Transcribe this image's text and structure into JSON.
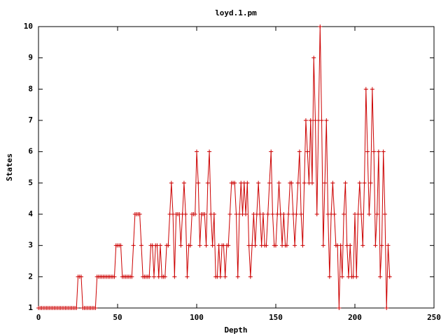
{
  "chart_data": {
    "type": "linespoints",
    "title": "loyd.1.pm",
    "x_label": "Depth",
    "y_label": "States",
    "color": "#cc0000",
    "values": [
      1,
      1,
      1,
      1,
      1,
      1,
      1,
      1,
      1,
      1,
      1,
      1,
      1,
      1,
      1,
      1,
      1,
      1,
      1,
      1,
      1,
      1,
      1,
      1,
      1,
      2,
      2,
      2,
      1,
      1,
      1,
      1,
      1,
      1,
      1,
      1,
      1,
      2,
      2,
      2,
      2,
      2,
      2,
      2,
      2,
      2,
      2,
      2,
      2,
      3,
      3,
      3,
      3,
      2,
      2,
      2,
      2,
      2,
      2,
      2,
      3,
      4,
      4,
      4,
      4,
      3,
      2,
      2,
      2,
      2,
      2,
      3,
      3,
      2,
      3,
      3,
      2,
      3,
      2,
      2,
      2,
      3,
      3,
      4,
      5,
      4,
      2,
      4,
      4,
      4,
      3,
      4,
      5,
      4,
      2,
      3,
      3,
      4,
      4,
      4,
      6,
      5,
      3,
      4,
      4,
      4,
      3,
      5,
      6,
      4,
      3,
      4,
      2,
      2,
      3,
      2,
      3,
      3,
      2,
      3,
      3,
      4,
      5,
      5,
      5,
      4,
      2,
      4,
      5,
      4,
      5,
      4,
      5,
      3,
      2,
      3,
      4,
      3,
      4,
      5,
      4,
      3,
      4,
      3,
      3,
      4,
      5,
      6,
      4,
      3,
      3,
      4,
      5,
      4,
      3,
      4,
      3,
      3,
      4,
      5,
      5,
      4,
      3,
      4,
      5,
      6,
      4,
      3,
      5,
      7,
      6,
      5,
      7,
      5,
      9,
      7,
      4,
      7,
      10,
      7,
      3,
      5,
      7,
      4,
      2,
      4,
      5,
      4,
      3,
      3,
      1,
      3,
      2,
      4,
      5,
      3,
      2,
      3,
      2,
      2,
      4,
      2,
      4,
      5,
      4,
      3,
      5,
      8,
      6,
      4,
      5,
      8,
      6,
      3,
      4,
      6,
      2,
      3,
      6,
      4,
      1,
      3,
      2
    ],
    "xlim": [
      0,
      250
    ],
    "xticks": [
      0,
      50,
      100,
      150,
      200,
      250
    ],
    "ylim": [
      1,
      10
    ],
    "yticks": [
      1,
      2,
      3,
      4,
      5,
      6,
      7,
      8,
      9,
      10
    ]
  }
}
